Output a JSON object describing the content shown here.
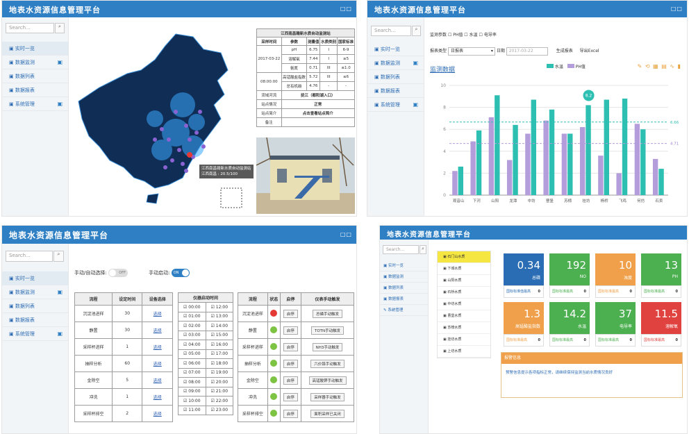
{
  "app_title": "地表水资源信息管理平台",
  "window_icons": "□□",
  "search_placeholder": "Search...",
  "nav": [
    "实时一览",
    "数据监测",
    "数据列表",
    "数据报表",
    "系统管理"
  ],
  "p1": {
    "table_title": "江西南昌赣新水质自动监测站",
    "headers": [
      "采样时间",
      "参数",
      "测量值",
      "水质类别",
      "国家标准"
    ],
    "sample_time_1": "2017-03-22",
    "sample_time_2": "08:00:00",
    "rows": [
      [
        "pH",
        "6.75",
        "I",
        "6-9"
      ],
      [
        "溶解氧",
        "7.44",
        "I",
        "≥5"
      ],
      [
        "氨氮",
        "0.71",
        "III",
        "≤1.0"
      ],
      [
        "高锰酸盐指数",
        "5.72",
        "III",
        "≤6"
      ],
      [
        "总有机碳",
        "4.76",
        "-",
        "-"
      ]
    ],
    "info": [
      [
        "流域河流",
        "抚江（都阳湖入口）"
      ],
      [
        "站点情况",
        "正常"
      ],
      [
        "站点简介",
        "点击查看站点简介"
      ],
      [
        "备注",
        ""
      ]
    ],
    "map_tooltip": "江西南昌赣新水质自动监测站",
    "map_tooltip_value": "江西南昌 : 20.5/100"
  },
  "p2": {
    "monitor_label": "监测参数",
    "params": [
      "PH值",
      "水温",
      "电导率"
    ],
    "report_label": "报表类型",
    "report_value": "日报表",
    "date_label": "日期",
    "date_value": "2017-03-22",
    "gen_btn": "生成报表",
    "export_btn": "导出Excel",
    "chart_label": "监测数据",
    "legend": [
      "水温",
      "PH值"
    ],
    "colors": {
      "water": "#2ebfb3",
      "ph": "#b39ddb"
    },
    "toolbox": "✎ ⟲ ▦ ▤ ∿ ▮"
  },
  "chart_data": {
    "type": "bar",
    "categories": [
      "观音山",
      "下河",
      "山阳",
      "龙潭",
      "中坊",
      "曹堡",
      "苏榜",
      "挂坊",
      "杨桥",
      "飞鸡",
      "何仿",
      "石卖"
    ],
    "series": [
      {
        "name": "PH值",
        "values": [
          2.2,
          4.9,
          7.1,
          3.2,
          5.6,
          6.8,
          5.6,
          6.2,
          3.6,
          2.0,
          6.5,
          3.3
        ]
      },
      {
        "name": "水温",
        "values": [
          2.6,
          5.9,
          9.1,
          6.4,
          8.7,
          7.8,
          5.6,
          8.2,
          8.7,
          8.8,
          6.0,
          2.4
        ]
      }
    ],
    "ylim": [
      0,
      10
    ],
    "yticks": [
      0,
      2,
      4,
      6,
      8,
      10
    ],
    "markline_values": [
      6.66,
      4.71
    ],
    "markline_labels": [
      "6.66",
      "4.71"
    ],
    "markpoints": [
      "8.2"
    ]
  },
  "p3": {
    "manual_label": "手动/自动选择:",
    "manual_state": "OFF",
    "auto_label": "手动启动:",
    "auto_state": "ON",
    "t1_headers": [
      "流程",
      "设定时间",
      "设备选择"
    ],
    "t1_rows": [
      [
        "沉淀池进样",
        "30",
        "选择"
      ],
      [
        "静置",
        "30",
        "选择"
      ],
      [
        "采样杯进样",
        "1",
        "选择"
      ],
      [
        "抽样分析",
        "60",
        "选择"
      ],
      [
        "金除空",
        "5",
        "选择"
      ],
      [
        "冲洗",
        "1",
        "选择"
      ],
      [
        "采样杯排空",
        "2",
        "选择"
      ]
    ],
    "t2_header": "仪器启动时间",
    "times_left": [
      "00:00",
      "01:00",
      "02:00",
      "03:00",
      "04:00",
      "05:00",
      "06:00",
      "07:00",
      "08:00",
      "09:00",
      "10:00",
      "11:00"
    ],
    "times_right": [
      "12:00",
      "13:00",
      "14:00",
      "15:00",
      "16:00",
      "17:00",
      "18:00",
      "19:00",
      "20:00",
      "21:00",
      "22:00",
      "23:00"
    ],
    "t3_headers": [
      "流程",
      "状态",
      "启停",
      "仪表手动触发"
    ],
    "t3_rows": [
      [
        "沉淀池进样",
        "red",
        "启停",
        "总磷手动触发"
      ],
      [
        "静置",
        "green",
        "启停",
        "TOTN手动触发"
      ],
      [
        "采样杯进样",
        "green",
        "启停",
        "NH3手动触发"
      ],
      [
        "抽样分析",
        "green",
        "启停",
        "六价铬手动触发"
      ],
      [
        "金除空",
        "green",
        "启停",
        "高锰酸钾手动触发"
      ],
      [
        "冲洗",
        "green",
        "启停",
        "采样器手动触发"
      ],
      [
        "采样杯排空",
        "green",
        "启停",
        "面积采样已关闭"
      ]
    ]
  },
  "p4": {
    "stations": [
      "石门山水质",
      "下城水质",
      "山阳水质",
      "石桥水质",
      "中坊水质",
      "曹堡水质",
      "苏榜水质",
      "挂坊水质",
      "上坊水质"
    ],
    "tiles": [
      {
        "value": "0.34",
        "label": "总磷",
        "foot": "国标标准值最高",
        "num": "0",
        "color": "#2a6db4"
      },
      {
        "value": "192",
        "label": "NO",
        "foot": "国标标准最高",
        "num": "0",
        "color": "#4caf50"
      },
      {
        "value": "10",
        "label": "浊度",
        "foot": "国标标准最高",
        "num": "0",
        "color": "#f0a04a"
      },
      {
        "value": "13",
        "label": "PH",
        "foot": "国标标准最高",
        "num": "0",
        "color": "#4caf50"
      },
      {
        "value": "1.3",
        "label": "高锰酸盐指数",
        "foot": "国标标准最高",
        "num": "0",
        "color": "#f0a04a"
      },
      {
        "value": "14.2",
        "label": "水温",
        "foot": "国标标准最高",
        "num": "0",
        "color": "#4caf50"
      },
      {
        "value": "37",
        "label": "电导率",
        "foot": "国标标准最高",
        "num": "0",
        "color": "#4caf50"
      },
      {
        "value": "11.5",
        "label": "溶解氧",
        "foot": "国标标准最高",
        "num": "0",
        "color": "#e0433f"
      }
    ],
    "notice_title": "报警信息",
    "notice_text": "预警信息提示各项指标正常，请继续保持监测当前水质情况良好"
  }
}
